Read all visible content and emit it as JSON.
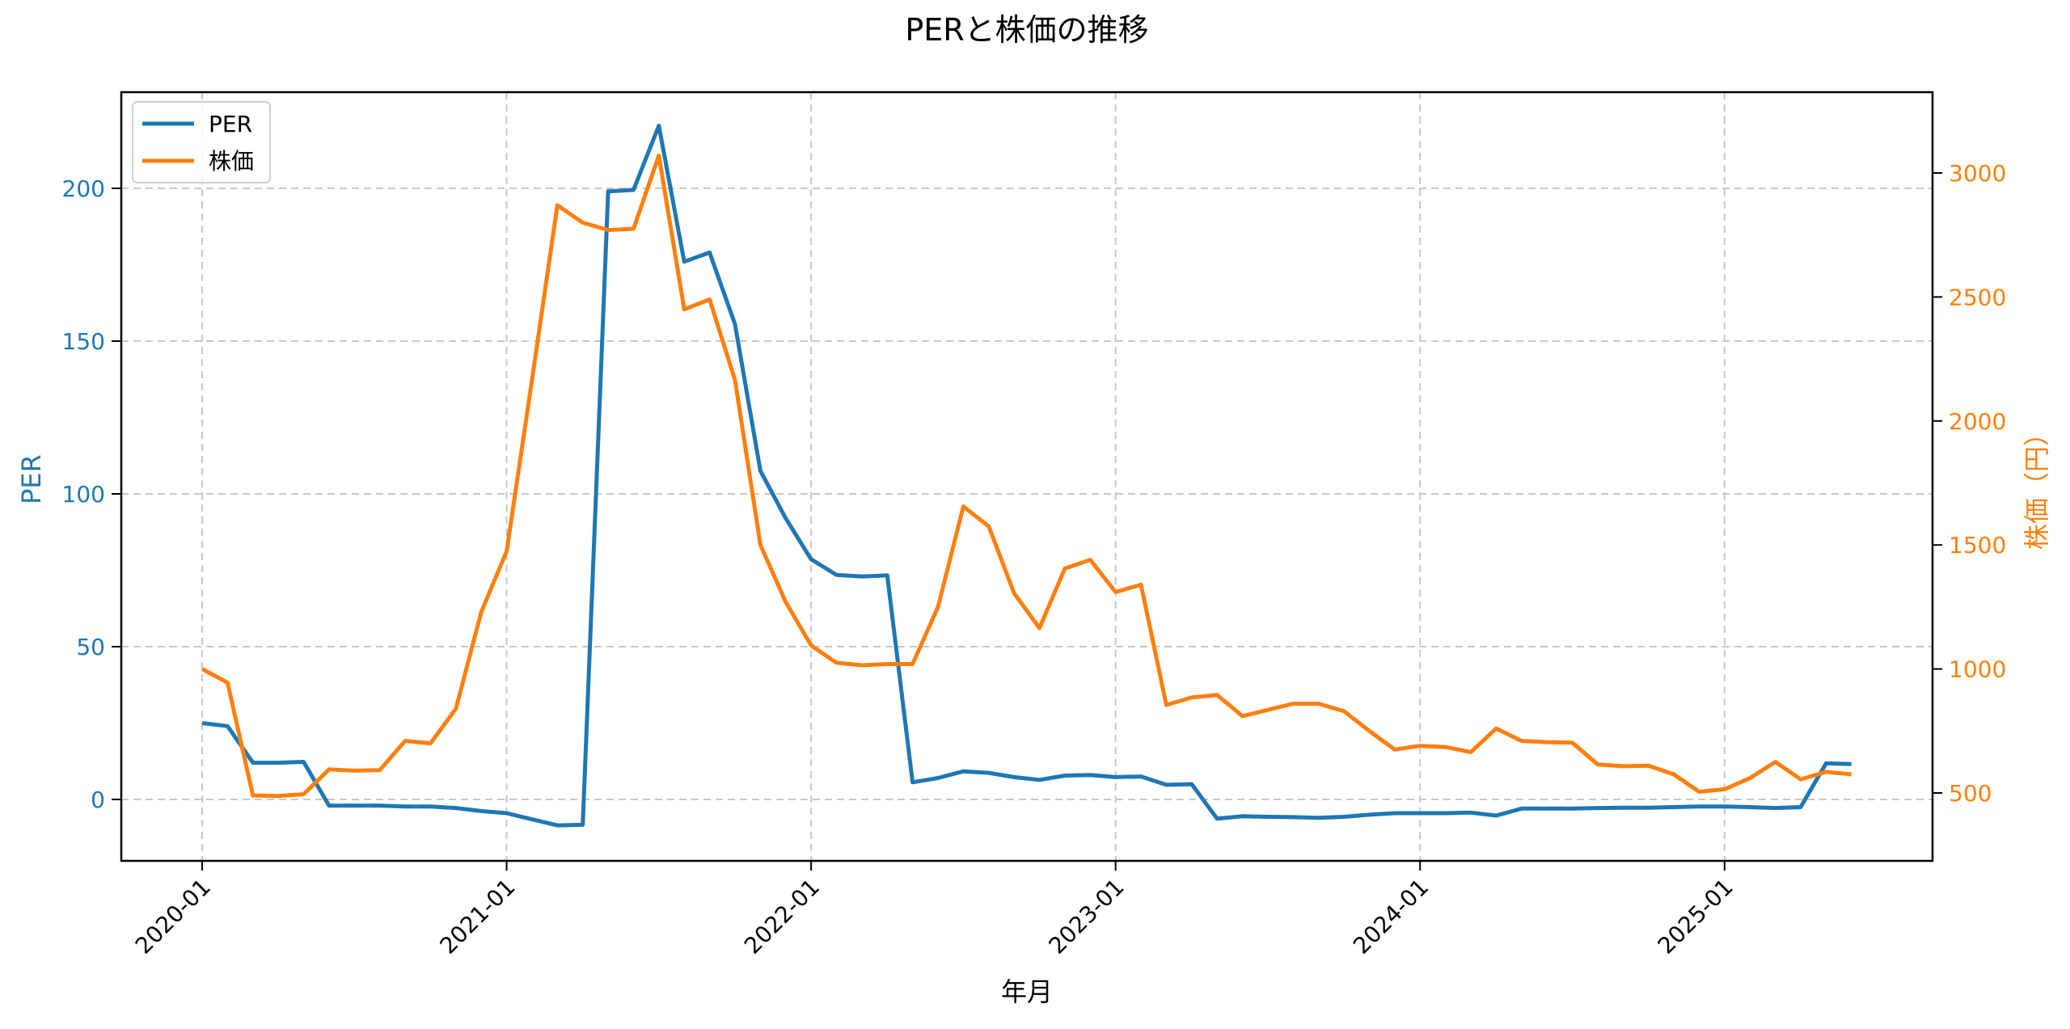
{
  "title": "PERと株価の推移",
  "colors": {
    "per": "#1f77b4",
    "price": "#ff7f0e",
    "grid": "#c8c8c8",
    "axis": "#000000"
  },
  "legend": {
    "items": [
      {
        "label": "PER",
        "color": "#1f77b4"
      },
      {
        "label": "株価",
        "color": "#ff7f0e"
      }
    ]
  },
  "axes": {
    "xlabel": "年月",
    "ylabel_left": "PER",
    "ylabel_right": "株価（円）",
    "x_ticks": [
      "2020-01",
      "2021-01",
      "2022-01",
      "2023-01",
      "2024-01",
      "2025-01"
    ],
    "y_left_ticks": [
      0,
      50,
      100,
      150,
      200
    ],
    "y_right_ticks": [
      500,
      1000,
      1500,
      2000,
      2500,
      3000
    ]
  },
  "chart_data": {
    "type": "line",
    "title": "PERと株価の推移",
    "xlabel": "年月",
    "ylabel": "PER",
    "ylabel_secondary": "株価（円）",
    "grid": true,
    "legend_position": "upper left",
    "ylim": [
      -20,
      230
    ],
    "ylim_secondary": [
      240,
      3310
    ],
    "x": [
      "2020-01",
      "2020-02",
      "2020-03",
      "2020-04",
      "2020-05",
      "2020-06",
      "2020-07",
      "2020-08",
      "2020-09",
      "2020-10",
      "2020-11",
      "2020-12",
      "2021-01",
      "2021-02",
      "2021-03",
      "2021-04",
      "2021-05",
      "2021-06",
      "2021-07",
      "2021-08",
      "2021-09",
      "2021-10",
      "2021-11",
      "2021-12",
      "2022-01",
      "2022-02",
      "2022-03",
      "2022-04",
      "2022-05",
      "2022-06",
      "2022-07",
      "2022-08",
      "2022-09",
      "2022-10",
      "2022-11",
      "2022-12",
      "2023-01",
      "2023-02",
      "2023-03",
      "2023-04",
      "2023-05",
      "2023-06",
      "2023-07",
      "2023-08",
      "2023-09",
      "2023-10",
      "2023-11",
      "2023-12",
      "2024-01",
      "2024-02",
      "2024-03",
      "2024-04",
      "2024-05",
      "2024-06",
      "2024-07",
      "2024-08",
      "2024-09",
      "2024-10",
      "2024-11",
      "2024-12",
      "2025-01",
      "2025-02",
      "2025-03",
      "2025-04",
      "2025-05",
      "2025-06"
    ],
    "series": [
      {
        "name": "PER",
        "axis": "left",
        "color": "#1f77b4",
        "values": [
          25,
          24,
          12,
          12,
          12.3,
          -2,
          -2,
          -2,
          -2.3,
          -2.3,
          -2.8,
          -3.8,
          -4.5,
          -6.5,
          -8.5,
          -8.3,
          199,
          199.5,
          220.5,
          176,
          179,
          155.5,
          107.5,
          92,
          78.6,
          73.5,
          73,
          73.3,
          5.6,
          7,
          9.2,
          8.7,
          7.3,
          6.4,
          7.8,
          8,
          7.3,
          7.5,
          4.8,
          5,
          -6.3,
          -5.5,
          -5.7,
          -5.8,
          -6,
          -5.7,
          -5,
          -4.5,
          -4.5,
          -4.5,
          -4.3,
          -5.3,
          -3,
          -3,
          -3,
          -2.8,
          -2.7,
          -2.7,
          -2.5,
          -2.3,
          -2.3,
          -2.5,
          -2.8,
          -2.5,
          11.8,
          11.6
        ]
      },
      {
        "name": "株価",
        "axis": "right",
        "color": "#ff7f0e",
        "values": [
          1000,
          945,
          490,
          488,
          495,
          595,
          590,
          592,
          710,
          700,
          840,
          1230,
          1475,
          2165,
          2870,
          2800,
          2770,
          2775,
          3070,
          2450,
          2490,
          2165,
          1500,
          1270,
          1095,
          1025,
          1015,
          1020,
          1020,
          1250,
          1655,
          1575,
          1305,
          1165,
          1405,
          1440,
          1310,
          1340,
          855,
          885,
          895,
          810,
          835,
          860,
          860,
          830,
          750,
          675,
          690,
          685,
          665,
          760,
          710,
          705,
          703,
          615,
          608,
          610,
          575,
          505,
          515,
          560,
          625,
          555,
          585,
          575
        ]
      }
    ]
  }
}
